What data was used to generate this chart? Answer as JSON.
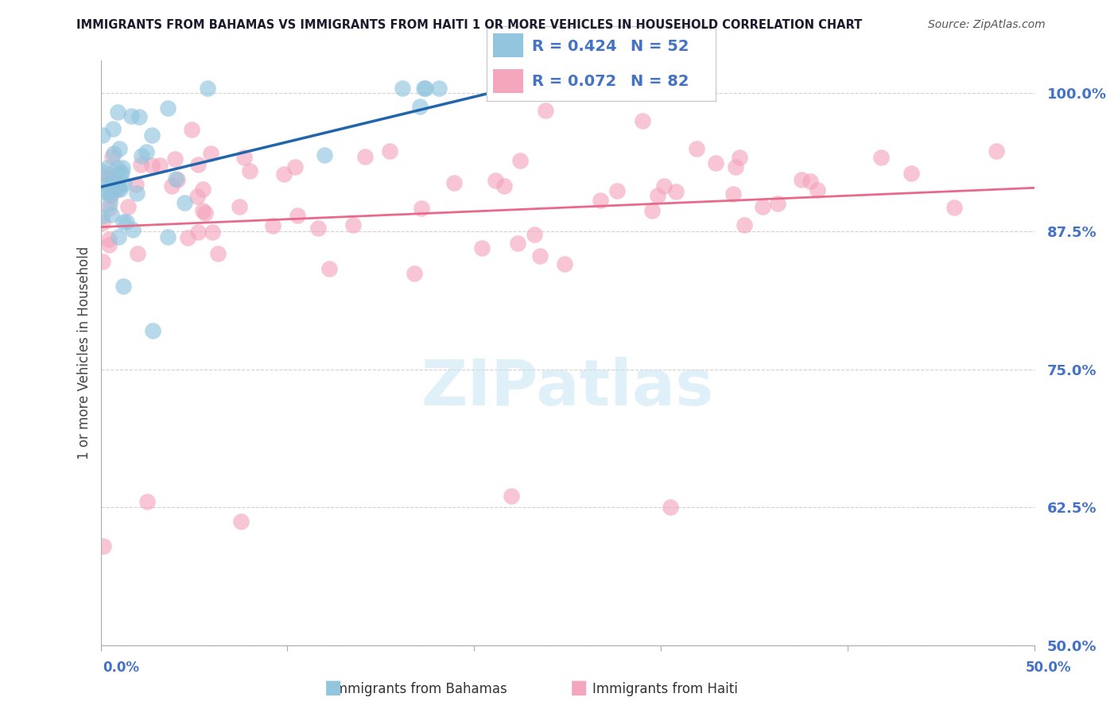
{
  "title": "IMMIGRANTS FROM BAHAMAS VS IMMIGRANTS FROM HAITI 1 OR MORE VEHICLES IN HOUSEHOLD CORRELATION CHART",
  "source": "Source: ZipAtlas.com",
  "ylabel": "1 or more Vehicles in Household",
  "xlim": [
    0.0,
    50.0
  ],
  "ylim": [
    50.0,
    103.0
  ],
  "yticks": [
    50.0,
    62.5,
    75.0,
    87.5,
    100.0
  ],
  "xticks": [
    0.0,
    10.0,
    20.0,
    30.0,
    40.0,
    50.0
  ],
  "bahamas_R": 0.424,
  "bahamas_N": 52,
  "haiti_R": 0.072,
  "haiti_N": 82,
  "bahamas_color": "#92c5de",
  "haiti_color": "#f4a6bd",
  "bahamas_line_color": "#2166ac",
  "haiti_line_color": "#e8698a",
  "watermark_color": "#c8e4f5",
  "title_color": "#1a1a2e",
  "source_color": "#555555",
  "label_color": "#4472c4",
  "ylabel_color": "#444444",
  "grid_color": "#cccccc",
  "spine_color": "#aaaaaa"
}
